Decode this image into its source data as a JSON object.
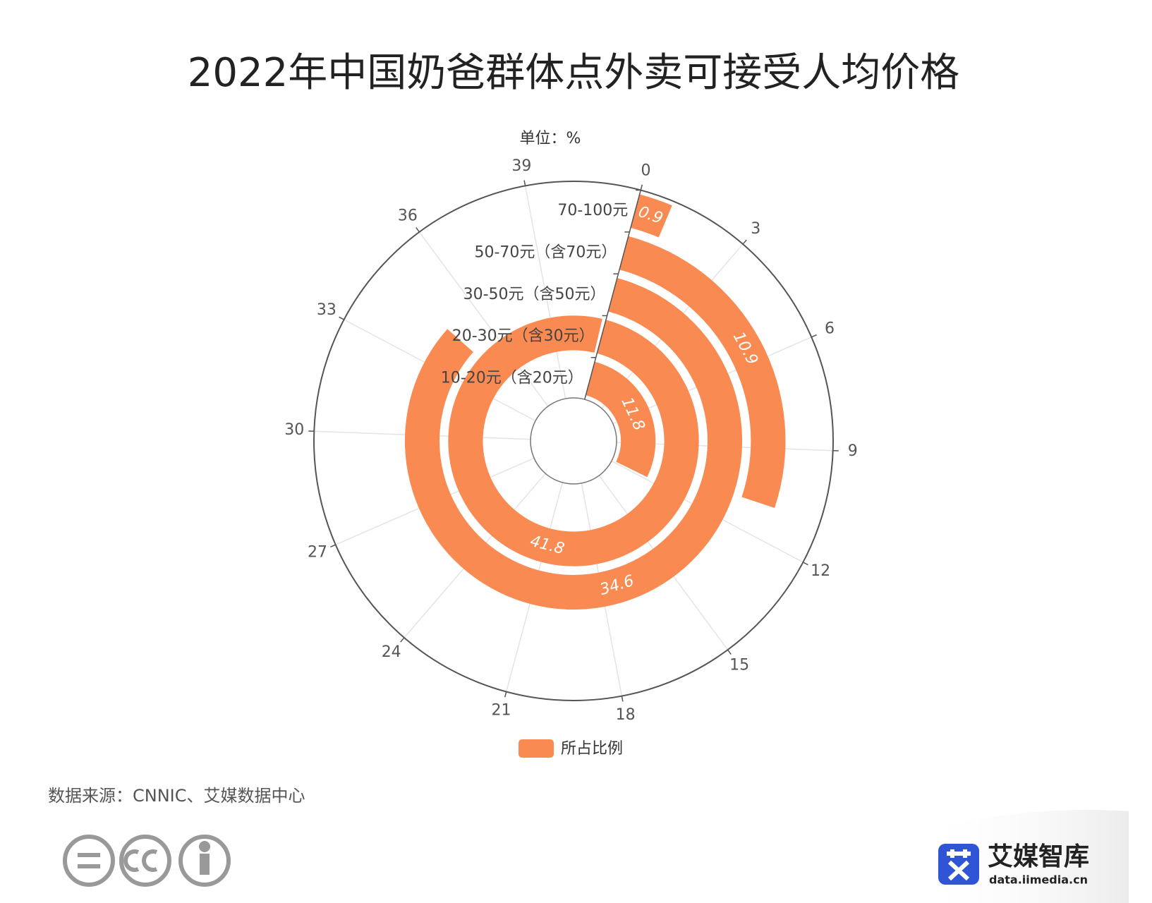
{
  "chart_data": {
    "type": "polar_bar",
    "title": "2022年中国奶爸群体点外卖可接受人均价格",
    "subtitle": "单位：%",
    "categories": [
      "10-20元（含20元）",
      "20-30元（含30元）",
      "30-50元（含50元）",
      "50-70元（含70元）",
      "70-100元"
    ],
    "series": [
      {
        "name": "所占比例",
        "color": "#f98a52",
        "values": [
          11.8,
          41.8,
          34.6,
          10.9,
          0.9
        ]
      }
    ],
    "ylim": [
      0,
      42
    ],
    "yticks": [
      0,
      3,
      6,
      9,
      12,
      15,
      18,
      21,
      24,
      27,
      30,
      33,
      36,
      39
    ],
    "grid": true,
    "legend": "bottom",
    "source": "数据来源：CNNIC、艾媒数据中心",
    "logo_text": "艾媒智库",
    "logo_url": "data.iimedia.cn"
  }
}
